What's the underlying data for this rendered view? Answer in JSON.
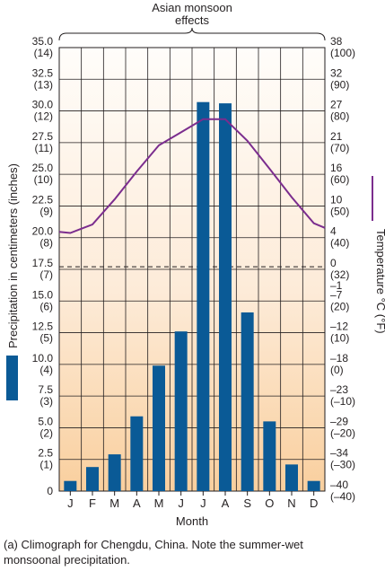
{
  "chart_data": {
    "type": "bar",
    "annotation": [
      "Asian monsoon",
      "effects"
    ],
    "xlabel": "Month",
    "ylabel": "Precipitation in centimeters (inches)",
    "y2label": "Temperature °C (°F)",
    "caption": [
      "(a) Climograph for Chengdu, China. Note the summer-wet",
      "monsoonal precipitation."
    ],
    "categories": [
      "J",
      "F",
      "M",
      "A",
      "M",
      "J",
      "J",
      "A",
      "S",
      "O",
      "N",
      "D"
    ],
    "ylim": [
      0,
      35
    ],
    "y_ticks": [
      {
        "v": 35.0,
        "a": "35.0",
        "b": "(14)"
      },
      {
        "v": 32.5,
        "a": "32.5",
        "b": "(13)"
      },
      {
        "v": 30.0,
        "a": "30.0",
        "b": "(12)"
      },
      {
        "v": 27.5,
        "a": "27.5",
        "b": "(11)"
      },
      {
        "v": 25.0,
        "a": "25.0",
        "b": "(10)"
      },
      {
        "v": 22.5,
        "a": "22.5",
        "b": "(9)"
      },
      {
        "v": 20.0,
        "a": "20.0",
        "b": "(8)"
      },
      {
        "v": 17.5,
        "a": "17.5",
        "b": "(7)"
      },
      {
        "v": 15.0,
        "a": "15.0",
        "b": "(6)"
      },
      {
        "v": 12.5,
        "a": "12.5",
        "b": "(5)"
      },
      {
        "v": 10.0,
        "a": "10.0",
        "b": "(4)"
      },
      {
        "v": 7.5,
        "a": "7.5",
        "b": "(3)"
      },
      {
        "v": 5.0,
        "a": "5.0",
        "b": "(2)"
      },
      {
        "v": 2.5,
        "a": "2.5",
        "b": "(1)"
      },
      {
        "v": 0,
        "a": "0",
        "b": ""
      }
    ],
    "temp_ticks": [
      {
        "v": 35.0,
        "a": "38",
        "b": "(100)"
      },
      {
        "v": 32.5,
        "a": "32",
        "b": "(90)"
      },
      {
        "v": 30.0,
        "a": "27",
        "b": "(80)"
      },
      {
        "v": 27.5,
        "a": "21",
        "b": "(70)"
      },
      {
        "v": 25.0,
        "a": "16",
        "b": "(60)"
      },
      {
        "v": 22.5,
        "a": "10",
        "b": "(50)"
      },
      {
        "v": 20.0,
        "a": "4",
        "b": "(40)"
      },
      {
        "v": 17.5,
        "a": "0",
        "b": "(32)",
        "a2": "–1"
      },
      {
        "v": 15.0,
        "a": "–7",
        "b": "(20)"
      },
      {
        "v": 12.5,
        "a": "–12",
        "b": "(10)"
      },
      {
        "v": 10.0,
        "a": "–18",
        "b": "(0)"
      },
      {
        "v": 7.5,
        "a": "–23",
        "b": "(–10)"
      },
      {
        "v": 5.0,
        "a": "–29",
        "b": "(–20)"
      },
      {
        "v": 2.5,
        "a": "–34",
        "b": "(–30)"
      },
      {
        "v": 0,
        "a": "–40",
        "b": "(–40)"
      }
    ],
    "freezing_line": 17.7,
    "series": [
      {
        "type": "bar",
        "unit": "cm",
        "values": [
          0.8,
          1.9,
          2.9,
          5.9,
          9.9,
          12.6,
          30.7,
          30.6,
          14.1,
          5.5,
          2.1,
          0.8
        ],
        "color": "#0a5a96"
      },
      {
        "type": "line",
        "unit": "°C",
        "values": [
          5.4,
          6.9,
          11.3,
          16.2,
          20.8,
          23.1,
          25.4,
          25.4,
          21.6,
          16.7,
          11.7,
          7.1
        ],
        "color": "#7b2d8e"
      }
    ],
    "grid": true,
    "legend": [
      "precipitation bars (left)",
      "temperature line (right)"
    ]
  }
}
